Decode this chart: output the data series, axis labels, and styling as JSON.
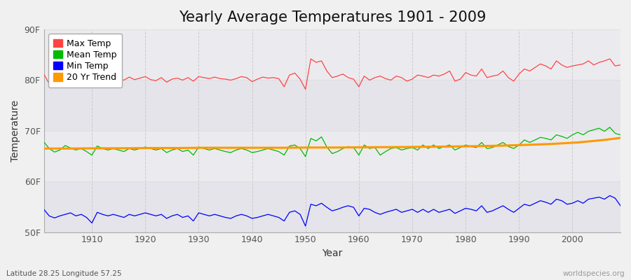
{
  "title": "Yearly Average Temperatures 1901 - 2009",
  "xlabel": "Year",
  "ylabel": "Temperature",
  "bottom_left": "Latitude 28.25 Longitude 57.25",
  "bottom_right": "worldspecies.org",
  "years": [
    1901,
    1902,
    1903,
    1904,
    1905,
    1906,
    1907,
    1908,
    1909,
    1910,
    1911,
    1912,
    1913,
    1914,
    1915,
    1916,
    1917,
    1918,
    1919,
    1920,
    1921,
    1922,
    1923,
    1924,
    1925,
    1926,
    1927,
    1928,
    1929,
    1930,
    1931,
    1932,
    1933,
    1934,
    1935,
    1936,
    1937,
    1938,
    1939,
    1940,
    1941,
    1942,
    1943,
    1944,
    1945,
    1946,
    1947,
    1948,
    1949,
    1950,
    1951,
    1952,
    1953,
    1954,
    1955,
    1956,
    1957,
    1958,
    1959,
    1960,
    1961,
    1962,
    1963,
    1964,
    1965,
    1966,
    1967,
    1968,
    1969,
    1970,
    1971,
    1972,
    1973,
    1974,
    1975,
    1976,
    1977,
    1978,
    1979,
    1980,
    1981,
    1982,
    1983,
    1984,
    1985,
    1986,
    1987,
    1988,
    1989,
    1990,
    1991,
    1992,
    1993,
    1994,
    1995,
    1996,
    1997,
    1998,
    1999,
    2000,
    2001,
    2002,
    2003,
    2004,
    2005,
    2006,
    2007,
    2008,
    2009
  ],
  "max_temp": [
    81.2,
    79.3,
    78.6,
    79.8,
    80.1,
    80.5,
    79.4,
    80.3,
    79.7,
    80.1,
    80.8,
    80.2,
    79.9,
    80.5,
    80.2,
    80.0,
    80.6,
    80.1,
    80.4,
    80.7,
    80.1,
    79.9,
    80.5,
    79.6,
    80.2,
    80.4,
    80.0,
    80.5,
    79.8,
    80.7,
    80.5,
    80.3,
    80.6,
    80.3,
    80.2,
    80.0,
    80.3,
    80.7,
    80.5,
    79.7,
    80.2,
    80.6,
    80.4,
    80.5,
    80.3,
    78.7,
    81.0,
    81.4,
    80.2,
    78.2,
    84.2,
    83.5,
    83.8,
    81.8,
    80.5,
    80.8,
    81.2,
    80.5,
    80.2,
    78.7,
    80.8,
    80.0,
    80.5,
    80.8,
    80.3,
    80.0,
    80.8,
    80.5,
    79.8,
    80.2,
    81.0,
    80.8,
    80.5,
    81.0,
    80.8,
    81.2,
    81.8,
    79.8,
    80.2,
    81.5,
    81.0,
    80.8,
    82.2,
    80.5,
    80.8,
    81.0,
    81.8,
    80.5,
    79.8,
    81.2,
    82.2,
    81.8,
    82.5,
    83.2,
    82.8,
    82.2,
    83.8,
    83.0,
    82.5,
    82.8,
    83.0,
    83.2,
    83.8,
    83.0,
    83.5,
    83.8,
    84.2,
    82.8,
    83.0
  ],
  "mean_temp": [
    67.8,
    66.5,
    65.8,
    66.2,
    67.1,
    66.6,
    66.2,
    66.5,
    65.9,
    65.2,
    67.0,
    66.5,
    66.2,
    66.5,
    66.2,
    65.9,
    66.5,
    66.2,
    66.5,
    66.8,
    66.5,
    66.2,
    66.5,
    65.7,
    66.2,
    66.5,
    65.9,
    66.2,
    65.2,
    66.8,
    66.5,
    66.2,
    66.5,
    66.2,
    65.9,
    65.7,
    66.2,
    66.5,
    66.2,
    65.7,
    65.9,
    66.2,
    66.5,
    66.2,
    65.9,
    65.2,
    67.0,
    67.2,
    66.5,
    64.9,
    68.5,
    68.0,
    68.8,
    66.8,
    65.5,
    65.9,
    66.5,
    66.9,
    66.7,
    65.2,
    67.2,
    66.5,
    66.7,
    65.2,
    65.9,
    66.5,
    66.7,
    66.2,
    66.5,
    66.7,
    66.2,
    67.2,
    66.5,
    67.2,
    66.5,
    66.9,
    67.2,
    66.2,
    66.7,
    67.2,
    66.9,
    66.7,
    67.7,
    66.5,
    66.7,
    67.2,
    67.7,
    66.9,
    66.5,
    67.2,
    68.2,
    67.7,
    68.2,
    68.7,
    68.5,
    68.2,
    69.2,
    68.9,
    68.5,
    69.2,
    69.7,
    69.2,
    69.9,
    70.2,
    70.5,
    69.9,
    70.7,
    69.5,
    69.2
  ],
  "min_temp": [
    54.5,
    53.2,
    52.8,
    53.2,
    53.5,
    53.8,
    53.2,
    53.5,
    52.9,
    51.8,
    53.9,
    53.5,
    53.2,
    53.5,
    53.2,
    52.9,
    53.5,
    53.2,
    53.5,
    53.8,
    53.5,
    53.2,
    53.5,
    52.7,
    53.2,
    53.5,
    52.9,
    53.2,
    52.2,
    53.8,
    53.5,
    53.2,
    53.5,
    53.2,
    52.9,
    52.7,
    53.2,
    53.5,
    53.2,
    52.7,
    52.9,
    53.2,
    53.5,
    53.2,
    52.9,
    52.2,
    53.9,
    54.2,
    53.5,
    51.2,
    55.5,
    55.2,
    55.7,
    54.9,
    54.2,
    54.5,
    54.9,
    55.2,
    54.9,
    53.2,
    54.7,
    54.5,
    53.9,
    53.5,
    53.9,
    54.2,
    54.5,
    53.9,
    54.2,
    54.5,
    53.9,
    54.5,
    53.9,
    54.5,
    53.9,
    54.2,
    54.5,
    53.7,
    54.2,
    54.7,
    54.5,
    54.2,
    55.2,
    53.9,
    54.2,
    54.7,
    55.2,
    54.5,
    53.9,
    54.7,
    55.5,
    55.2,
    55.7,
    56.2,
    55.9,
    55.5,
    56.5,
    56.2,
    55.5,
    55.7,
    56.2,
    55.7,
    56.5,
    56.7,
    56.9,
    56.5,
    57.2,
    56.7,
    55.2
  ],
  "trend_years": [
    1901,
    1906,
    1911,
    1916,
    1921,
    1926,
    1931,
    1936,
    1941,
    1946,
    1951,
    1956,
    1961,
    1966,
    1971,
    1976,
    1981,
    1986,
    1991,
    1996,
    2001,
    2006,
    2009
  ],
  "trend_values": [
    66.5,
    66.5,
    66.55,
    66.55,
    66.6,
    66.6,
    66.65,
    66.65,
    66.65,
    66.65,
    66.7,
    66.7,
    66.75,
    66.78,
    66.82,
    66.88,
    66.95,
    67.05,
    67.2,
    67.4,
    67.7,
    68.2,
    68.6
  ],
  "bg_color": "#f0f0f0",
  "plot_bg_color": "#f0f0f0",
  "plot_inner_bg": "#e8e8ec",
  "max_color": "#ff4444",
  "mean_color": "#00bb00",
  "min_color": "#0000ff",
  "trend_color": "#ff9900",
  "ylim_min": 50,
  "ylim_max": 90,
  "yticks": [
    50,
    60,
    70,
    80,
    90
  ],
  "ytick_labels": [
    "50F",
    "60F",
    "70F",
    "80F",
    "90F"
  ],
  "xticks": [
    1910,
    1920,
    1930,
    1940,
    1950,
    1960,
    1970,
    1980,
    1990,
    2000
  ],
  "title_fontsize": 15,
  "legend_fontsize": 9,
  "axis_fontsize": 10,
  "tick_fontsize": 9
}
